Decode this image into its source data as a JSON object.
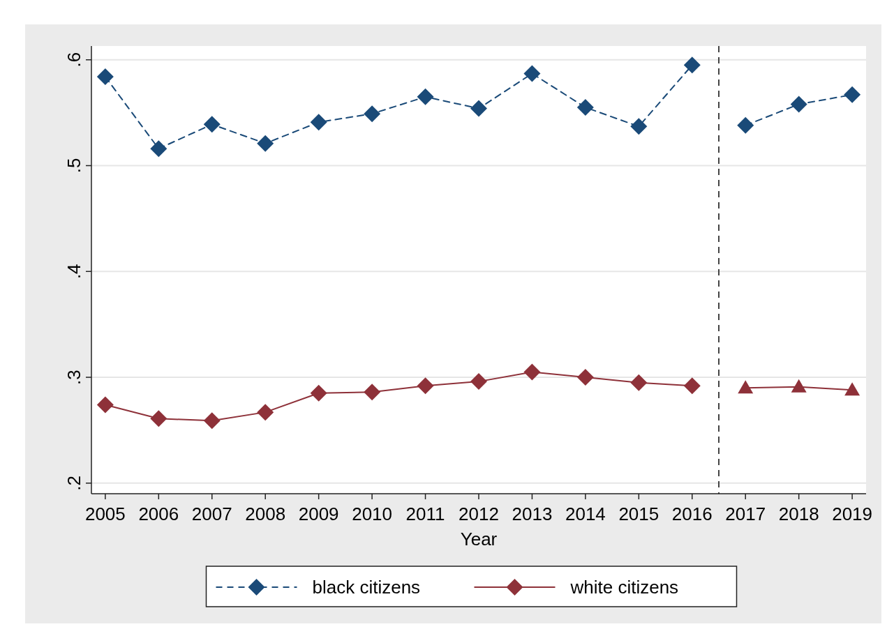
{
  "chart_data": {
    "type": "line",
    "xlabel": "Year",
    "xlim": [
      2004.74,
      2019.26
    ],
    "xticks": [
      2005,
      2006,
      2007,
      2008,
      2009,
      2010,
      2011,
      2012,
      2013,
      2014,
      2015,
      2016,
      2017,
      2018,
      2019
    ],
    "ylim": [
      0.19,
      0.613
    ],
    "yticks": [
      {
        "value": 0.2,
        "label": ".2"
      },
      {
        "value": 0.3,
        "label": ".3"
      },
      {
        "value": 0.4,
        "label": ".4"
      },
      {
        "value": 0.5,
        "label": ".5"
      },
      {
        "value": 0.6,
        "label": ".6"
      }
    ],
    "grid": "y",
    "legend": "bottom",
    "series": [
      {
        "name": "black citizens",
        "color": "#1a4a78",
        "marker": "diamond",
        "line_style": "dashed",
        "x": [
          2005,
          2006,
          2007,
          2008,
          2009,
          2010,
          2011,
          2012,
          2013,
          2014,
          2015,
          2016
        ],
        "values": [
          0.584,
          0.516,
          0.539,
          0.521,
          0.541,
          0.549,
          0.565,
          0.554,
          0.587,
          0.555,
          0.537,
          0.595
        ]
      },
      {
        "name": "white citizens",
        "color": "#8e3139",
        "marker": "diamond",
        "line_style": "solid",
        "x": [
          2005,
          2006,
          2007,
          2008,
          2009,
          2010,
          2011,
          2012,
          2013,
          2014,
          2015,
          2016
        ],
        "values": [
          0.274,
          0.261,
          0.259,
          0.267,
          0.285,
          0.286,
          0.292,
          0.296,
          0.305,
          0.3,
          0.295,
          0.292
        ]
      },
      {
        "color": "#1a4a78",
        "marker": "diamond",
        "line_style": "dashed",
        "x": [
          2017,
          2018,
          2019
        ],
        "values": [
          0.538,
          0.558,
          0.567
        ]
      },
      {
        "color": "#8e3139",
        "marker": "triangle",
        "line_style": "solid",
        "x": [
          2017,
          2018,
          2019
        ],
        "values": [
          0.29,
          0.291,
          0.288
        ]
      }
    ],
    "ref_lines": [
      {
        "axis": "x",
        "value": 2016.5,
        "color": "#444444",
        "line_style": "dashed"
      }
    ]
  }
}
